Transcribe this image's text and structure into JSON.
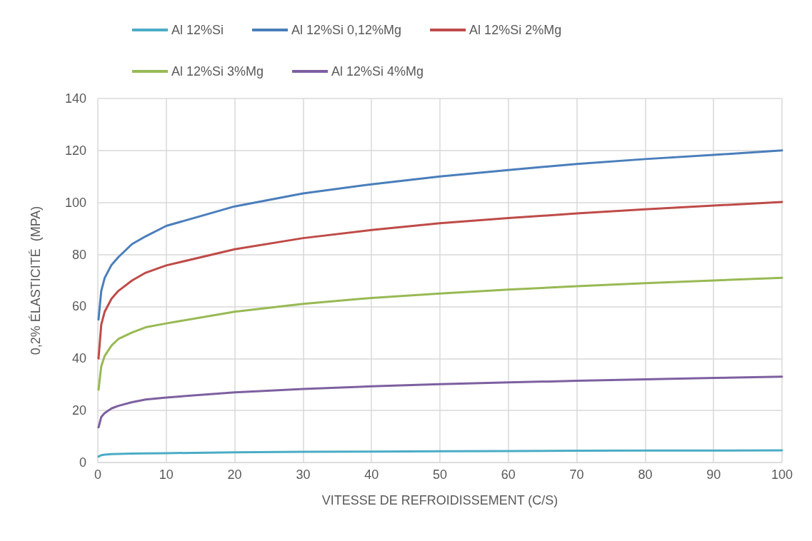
{
  "chart_data": {
    "type": "line",
    "xlabel": "VITESSE DE REFROIDISSEMENT (C/S)",
    "ylabel": "0,2% ÉLASTICITÉ  (MPA)",
    "xlim": [
      0,
      100
    ],
    "xticks": [
      0,
      10,
      20,
      30,
      40,
      50,
      60,
      70,
      80,
      90,
      100
    ],
    "ylim": [
      0,
      140
    ],
    "yticks": [
      0,
      20,
      40,
      60,
      80,
      100,
      120,
      140
    ],
    "grid": true,
    "legend": "top",
    "marker": "none",
    "line_style": "solid",
    "x": [
      0.1,
      0.5,
      1,
      2,
      3,
      5,
      7,
      10,
      20,
      30,
      40,
      50,
      60,
      70,
      80,
      90,
      100
    ],
    "series": [
      {
        "name": "Al 12%Si",
        "color": "#4bacc6",
        "values": [
          2.3,
          2.8,
          3,
          3.2,
          3.3,
          3.4,
          3.5,
          3.6,
          3.9,
          4.1,
          4.2,
          4.3,
          4.4,
          4.5,
          4.6,
          4.6,
          4.7
        ]
      },
      {
        "name": "Al 12%Si 0,12%Mg",
        "color": "#4a7ebb",
        "values": [
          55,
          66,
          71,
          76,
          79,
          84,
          87,
          91,
          98.5,
          103.5,
          107,
          110,
          112.5,
          114.8,
          116.7,
          118.3,
          120
        ]
      },
      {
        "name": "Al 12%Si 2%Mg",
        "color": "#be4b48",
        "values": [
          40,
          53,
          58,
          63,
          66,
          70,
          73,
          75.8,
          82,
          86.3,
          89.4,
          92,
          94,
          95.8,
          97.4,
          98.8,
          100.2
        ]
      },
      {
        "name": "Al 12%Si 3%Mg",
        "color": "#98b954",
        "values": [
          28,
          37,
          41,
          45,
          47.5,
          50,
          52,
          53.5,
          58,
          61,
          63.3,
          65,
          66.5,
          67.8,
          69,
          70,
          71
        ]
      },
      {
        "name": "Al 12%Si 4%Mg",
        "color": "#7d60a0",
        "values": [
          13.5,
          17.5,
          19,
          20.8,
          21.8,
          23.2,
          24.2,
          25,
          27,
          28.3,
          29.3,
          30.1,
          30.8,
          31.4,
          32,
          32.5,
          33
        ]
      }
    ]
  }
}
